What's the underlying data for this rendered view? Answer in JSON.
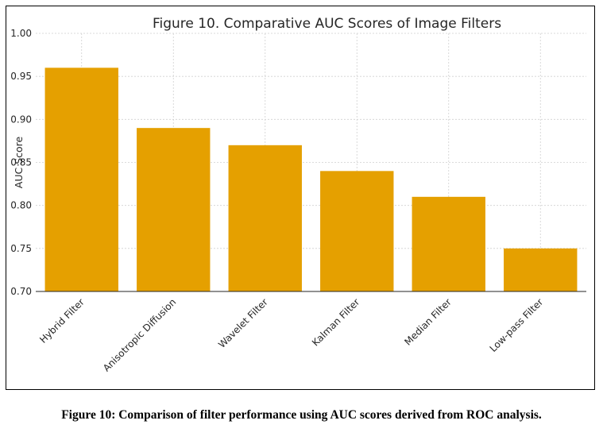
{
  "chart_data": {
    "type": "bar",
    "title": "Figure 10. Comparative AUC Scores of Image Filters",
    "xlabel": "",
    "ylabel": "AUC Score",
    "categories": [
      "Hybrid Filter",
      "Anisotropic Diffusion",
      "Wavelet Filter",
      "Kalman Filter",
      "Median Filter",
      "Low-pass Filter"
    ],
    "values": [
      0.96,
      0.89,
      0.87,
      0.84,
      0.81,
      0.75
    ],
    "ylim": [
      0.7,
      1.0
    ],
    "yticks": [
      "0.70",
      "0.75",
      "0.80",
      "0.85",
      "0.90",
      "0.95",
      "1.00"
    ],
    "grid": true,
    "bar_color": "#e5a000"
  },
  "caption": "Figure 10: Comparison of filter performance using AUC scores derived from ROC analysis."
}
